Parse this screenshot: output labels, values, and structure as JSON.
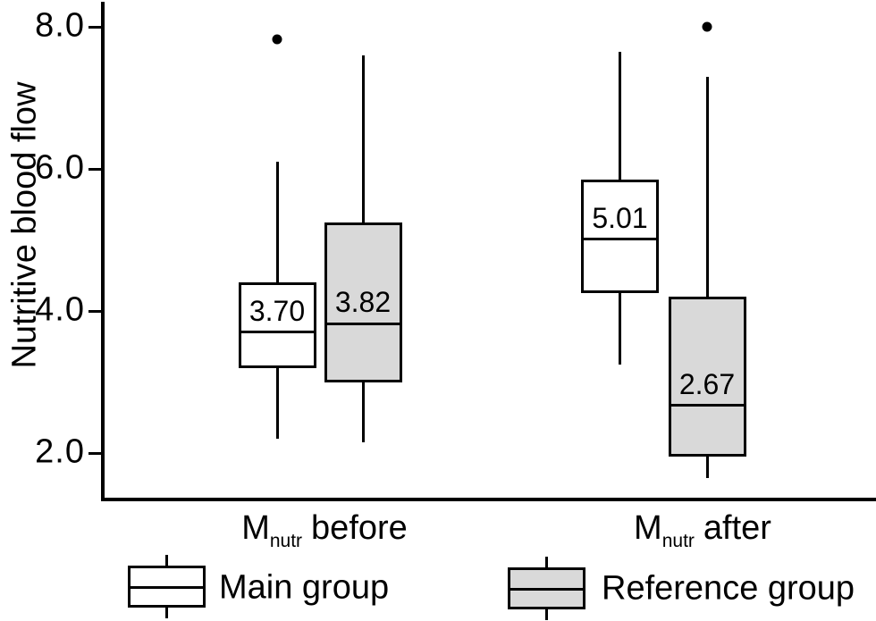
{
  "colors": {
    "stroke": "#000000",
    "main_group_fill": "#ffffff",
    "reference_group_fill": "#d9d9d9"
  },
  "x_axis": {
    "categories": [
      {
        "main": "M",
        "sub": "nutr",
        "rest": "before"
      },
      {
        "main": "M",
        "sub": "nutr",
        "rest": "after"
      }
    ]
  },
  "legend": [
    {
      "label": "Main group",
      "fill": "#ffffff"
    },
    {
      "label": "Reference group",
      "fill": "#d9d9d9"
    }
  ],
  "chart_data": {
    "type": "boxplot",
    "ylabel": "Nutritive blood flow",
    "ylim": [
      1.3,
      8.4
    ],
    "grid": false,
    "legend_position": "bottom",
    "yticks": [
      {
        "label": "8.0",
        "value": 8.0
      },
      {
        "label": "6.0",
        "value": 6.0
      },
      {
        "label": "4.0",
        "value": 4.0
      },
      {
        "label": "2.0",
        "value": 2.0
      }
    ],
    "categories": [
      "Mnutr before",
      "Mnutr after"
    ],
    "groups": [
      "Main group",
      "Reference group"
    ],
    "boxes": [
      {
        "category": "Mnutr before",
        "group": "Main group",
        "whisker_low": 2.2,
        "q1": 3.2,
        "median": 3.7,
        "q3": 4.4,
        "whisker_high": 6.1,
        "median_label": "3.70",
        "outliers": [
          7.82
        ]
      },
      {
        "category": "Mnutr before",
        "group": "Reference group",
        "whisker_low": 2.15,
        "q1": 3.0,
        "median": 3.82,
        "q3": 5.25,
        "whisker_high": 7.6,
        "median_label": "3.82",
        "outliers": []
      },
      {
        "category": "Mnutr after",
        "group": "Main group",
        "whisker_low": 3.25,
        "q1": 4.25,
        "median": 5.01,
        "q3": 5.85,
        "whisker_high": 7.65,
        "median_label": "5.01",
        "outliers": []
      },
      {
        "category": "Mnutr after",
        "group": "Reference group",
        "whisker_low": 1.65,
        "q1": 1.95,
        "median": 2.67,
        "q3": 4.2,
        "whisker_high": 7.3,
        "median_label": "2.67",
        "outliers": [
          8.0
        ]
      }
    ]
  }
}
